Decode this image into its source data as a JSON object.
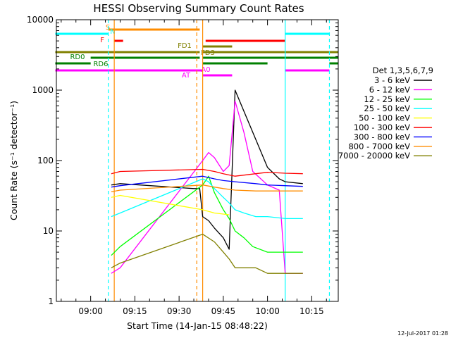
{
  "chart_data": {
    "type": "line",
    "title": "HESSI Observing Summary Count Rates",
    "xlabel": "Start Time (14-Jan-15 08:48:22)",
    "ylabel": "Count Rate (s⁻¹ detector⁻¹)",
    "y_scale": "log",
    "ylim": [
      1,
      10000
    ],
    "xlim": [
      "08:48:22",
      "10:24:00"
    ],
    "x_ticks": [
      "09:00",
      "09:15",
      "09:30",
      "09:45",
      "10:00",
      "10:15"
    ],
    "y_ticks": [
      {
        "value": 1,
        "label": "1"
      },
      {
        "value": 10,
        "label": "10"
      },
      {
        "value": 100,
        "label": "100"
      },
      {
        "value": 1000,
        "label": "1000"
      },
      {
        "value": 10000,
        "label": "10000"
      }
    ],
    "legend_title": "Det 1,3,5,6,7,9",
    "legend_position": "right",
    "series": [
      {
        "name": "3 - 6 keV",
        "color": "#000000",
        "points": [
          [
            "09:07",
            45
          ],
          [
            "09:10",
            47
          ],
          [
            "09:35",
            40
          ],
          [
            "09:36",
            40
          ],
          [
            "09:37",
            40
          ],
          [
            "09:38",
            16
          ],
          [
            "09:40",
            14
          ],
          [
            "09:42",
            11
          ],
          [
            "09:45",
            8
          ],
          [
            "09:47",
            5.5
          ],
          [
            "09:49",
            1000
          ],
          [
            "09:52",
            500
          ],
          [
            "09:56",
            200
          ],
          [
            "10:00",
            80
          ],
          [
            "10:04",
            55
          ],
          [
            "10:06",
            50
          ],
          [
            "10:12",
            47
          ]
        ]
      },
      {
        "name": "6 - 12 keV",
        "color": "#ff00ff",
        "points": [
          [
            "09:07",
            2.5
          ],
          [
            "09:10",
            3
          ],
          [
            "09:38",
            100
          ],
          [
            "09:40",
            130
          ],
          [
            "09:42",
            110
          ],
          [
            "09:45",
            70
          ],
          [
            "09:47",
            85
          ],
          [
            "09:49",
            700
          ],
          [
            "09:52",
            250
          ],
          [
            "09:55",
            70
          ],
          [
            "10:00",
            45
          ],
          [
            "10:04",
            38
          ],
          [
            "10:06",
            2.5
          ],
          [
            "10:12",
            2.5
          ]
        ]
      },
      {
        "name": "12 - 25 keV",
        "color": "#00ff00",
        "points": [
          [
            "09:07",
            4.5
          ],
          [
            "09:10",
            6
          ],
          [
            "09:38",
            45
          ],
          [
            "09:40",
            60
          ],
          [
            "09:42",
            35
          ],
          [
            "09:45",
            20
          ],
          [
            "09:47",
            15
          ],
          [
            "09:49",
            10
          ],
          [
            "09:52",
            8
          ],
          [
            "09:55",
            6
          ],
          [
            "10:00",
            5
          ],
          [
            "10:06",
            5
          ],
          [
            "10:12",
            5
          ]
        ]
      },
      {
        "name": "25 - 50 keV",
        "color": "#00ffff",
        "points": [
          [
            "09:07",
            16
          ],
          [
            "09:10",
            18
          ],
          [
            "09:38",
            55
          ],
          [
            "09:40",
            50
          ],
          [
            "09:42",
            40
          ],
          [
            "09:45",
            30
          ],
          [
            "09:47",
            25
          ],
          [
            "09:49",
            20
          ],
          [
            "09:52",
            18
          ],
          [
            "09:56",
            16
          ],
          [
            "10:00",
            16
          ],
          [
            "10:06",
            15
          ],
          [
            "10:12",
            15
          ]
        ]
      },
      {
        "name": "50 - 100 keV",
        "color": "#ffff00",
        "points": [
          [
            "09:07",
            30
          ],
          [
            "09:10",
            32
          ],
          [
            "09:38",
            20
          ],
          [
            "09:42",
            18
          ],
          [
            "09:47",
            17
          ]
        ]
      },
      {
        "name": "100 - 300 keV",
        "color": "#ff0000",
        "points": [
          [
            "09:07",
            65
          ],
          [
            "09:10",
            70
          ],
          [
            "09:38",
            75
          ],
          [
            "09:42",
            70
          ],
          [
            "09:45",
            65
          ],
          [
            "09:49",
            60
          ],
          [
            "09:56",
            65
          ],
          [
            "10:00",
            68
          ],
          [
            "10:06",
            66
          ],
          [
            "10:12",
            65
          ]
        ]
      },
      {
        "name": "300 - 800 keV",
        "color": "#0000ff",
        "points": [
          [
            "09:07",
            42
          ],
          [
            "09:10",
            44
          ],
          [
            "09:38",
            60
          ],
          [
            "09:42",
            55
          ],
          [
            "09:45",
            52
          ],
          [
            "09:49",
            50
          ],
          [
            "09:56",
            47
          ],
          [
            "10:00",
            45
          ],
          [
            "10:06",
            44
          ],
          [
            "10:12",
            43
          ]
        ]
      },
      {
        "name": "800 - 7000 keV",
        "color": "#ff8c00",
        "points": [
          [
            "09:07",
            36
          ],
          [
            "09:10",
            38
          ],
          [
            "09:38",
            45
          ],
          [
            "09:42",
            42
          ],
          [
            "09:45",
            40
          ],
          [
            "09:49",
            38
          ],
          [
            "09:56",
            37
          ],
          [
            "10:00",
            37
          ],
          [
            "10:06",
            37
          ],
          [
            "10:12",
            37
          ]
        ]
      },
      {
        "name": "7000 - 20000 keV",
        "color": "#808000",
        "points": [
          [
            "09:07",
            3
          ],
          [
            "09:10",
            3.5
          ],
          [
            "09:38",
            9
          ],
          [
            "09:42",
            7
          ],
          [
            "09:45",
            5
          ],
          [
            "09:47",
            4
          ],
          [
            "09:49",
            3
          ],
          [
            "09:56",
            3
          ],
          [
            "10:00",
            2.5
          ],
          [
            "10:06",
            2.5
          ],
          [
            "10:12",
            2.5
          ]
        ]
      }
    ],
    "flag_bars": [
      {
        "label": "S",
        "color": "#ff8c00",
        "segments": [
          [
            "09:06",
            "09:37"
          ]
        ]
      },
      {
        "label": "N",
        "color": "#00ffff",
        "segments": [
          [
            "08:48",
            "09:06"
          ],
          [
            "10:06",
            "10:21"
          ]
        ]
      },
      {
        "label": "F",
        "color": "#ff0000",
        "segments": [
          [
            "09:08",
            "09:11"
          ],
          [
            "09:39",
            "10:06"
          ]
        ]
      },
      {
        "label": "FD1",
        "color": "#808000",
        "segments": [
          [
            "09:38",
            "09:48"
          ]
        ]
      },
      {
        "label": "FD3",
        "color": "#808000",
        "segments": [
          [
            "08:48",
            "09:37"
          ],
          [
            "09:38",
            "10:24"
          ]
        ]
      },
      {
        "label": "RD0",
        "color": "#008000",
        "segments": [
          [
            "09:00",
            "09:37"
          ],
          [
            "09:38",
            "10:24"
          ]
        ]
      },
      {
        "label": "RD6",
        "color": "#008000",
        "segments": [
          [
            "08:48",
            "09:00"
          ],
          [
            "09:38",
            "10:00"
          ],
          [
            "10:21",
            "10:24"
          ]
        ]
      },
      {
        "label": "AT",
        "color": "#ff00ff",
        "segments": [
          [
            "08:48",
            "09:38"
          ],
          [
            "10:06",
            "10:21"
          ]
        ]
      },
      {
        "label": "A0",
        "color": "#ff00ff",
        "segments": [
          [
            "09:38",
            "09:48"
          ]
        ]
      }
    ],
    "vertical_markers": [
      {
        "time": "09:06",
        "color": "#00ffff",
        "style": "dashed"
      },
      {
        "time": "09:08",
        "color": "#ff8c00",
        "style": "solid"
      },
      {
        "time": "09:36",
        "color": "#ff8c00",
        "style": "dashed"
      },
      {
        "time": "09:38",
        "color": "#ff8c00",
        "style": "solid"
      },
      {
        "time": "10:06",
        "color": "#00ffff",
        "style": "solid"
      },
      {
        "time": "10:21",
        "color": "#00ffff",
        "style": "dashed"
      }
    ],
    "timestamp": "12-Jul-2017 01:28"
  }
}
